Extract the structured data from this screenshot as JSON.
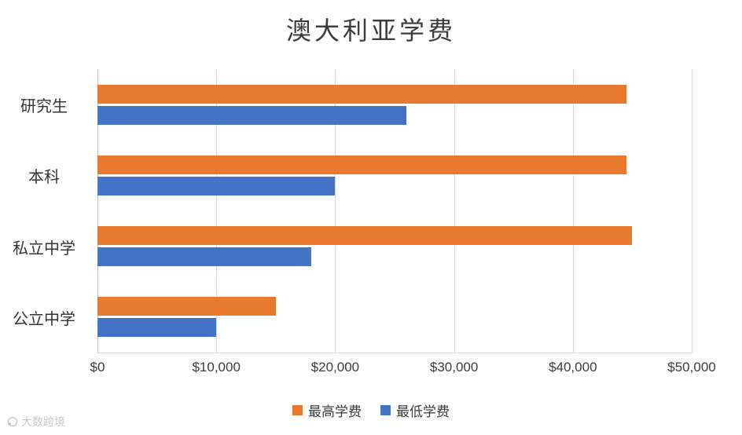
{
  "chart_data": {
    "type": "bar",
    "orientation": "horizontal",
    "title": "澳大利亚学费",
    "categories": [
      "研究生",
      "本科",
      "私立中学",
      "公立中学"
    ],
    "series": [
      {
        "name": "最高学费",
        "color": "#E8792E",
        "values": [
          44500,
          44500,
          45000,
          15000
        ]
      },
      {
        "name": "最低学费",
        "color": "#4472C4",
        "values": [
          26000,
          20000,
          18000,
          10000
        ]
      }
    ],
    "xlim": [
      0,
      50000
    ],
    "x_ticks": [
      "$0",
      "$10,000",
      "$20,000",
      "$30,000",
      "$40,000",
      "$50,000"
    ],
    "x_tick_values": [
      0,
      10000,
      20000,
      30000,
      40000,
      50000
    ],
    "grid": "vertical",
    "legend_position": "bottom",
    "gridline_color": "#d9d9d9"
  },
  "watermark": {
    "icon": "loop-logo-icon",
    "text": "大数跨境"
  }
}
